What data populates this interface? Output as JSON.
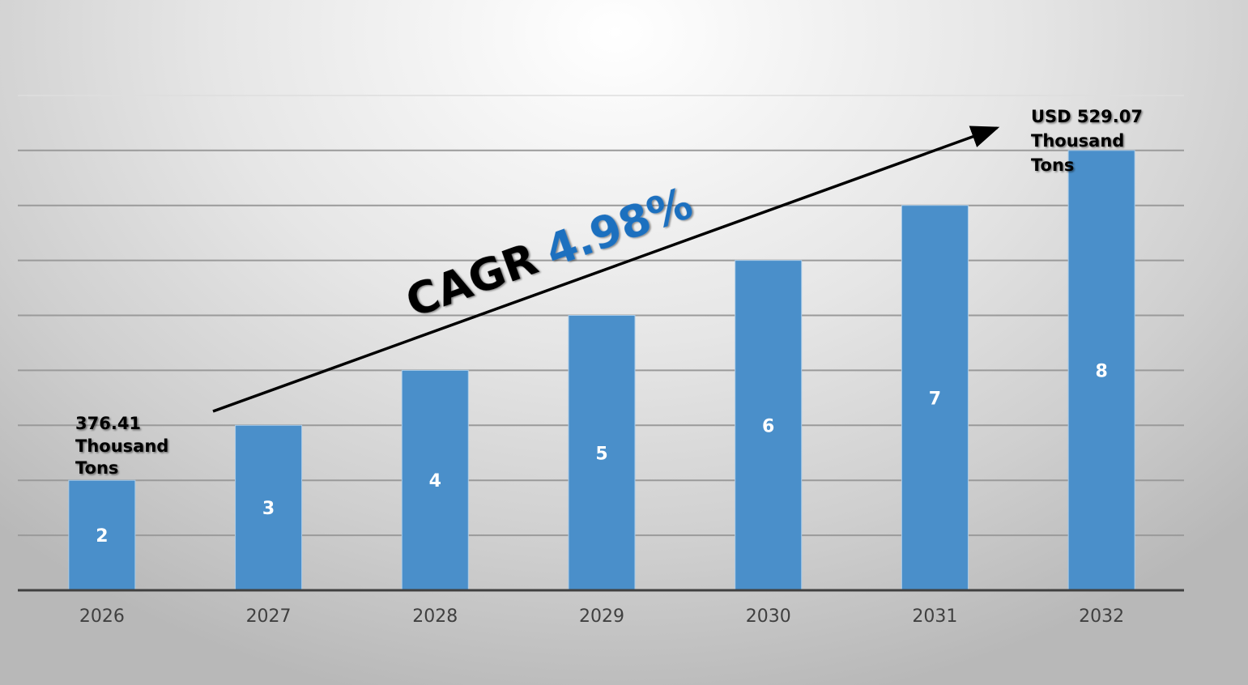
{
  "chart_data": {
    "type": "bar",
    "categories": [
      "2026",
      "2027",
      "2028",
      "2029",
      "2030",
      "2031",
      "2032"
    ],
    "values": [
      2,
      3,
      4,
      5,
      6,
      7,
      8
    ],
    "data_labels": [
      "2",
      "3",
      "4",
      "5",
      "6",
      "7",
      "8"
    ],
    "ylim": [
      0,
      9
    ],
    "grid": true,
    "bar_color": "#4a8fca",
    "annotations": {
      "start": [
        "376.41",
        "Thousand",
        "Tons"
      ],
      "end": [
        "USD 529.07",
        "Thousand",
        "Tons"
      ],
      "cagr_label": "CAGR",
      "cagr_value": "4.98%",
      "cagr_value_color": "#1f6fbf"
    }
  }
}
